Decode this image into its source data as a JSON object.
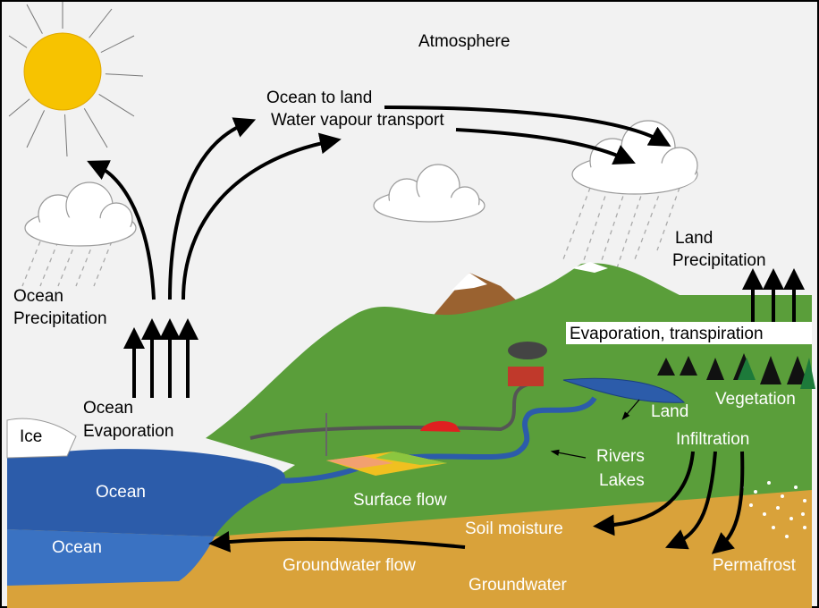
{
  "atmosphere": "Atmosphere",
  "vapour_transport": [
    "Ocean to land",
    "Water vapour transport"
  ],
  "land_precipitation": [
    "Land",
    "Precipitation"
  ],
  "ocean_precipitation": [
    "Ocean",
    "Precipitation"
  ],
  "evapotranspiration": "Evaporation, transpiration",
  "vegetation": "Vegetation",
  "ocean_evaporation": [
    "Ocean",
    "Evaporation"
  ],
  "ice": "Ice",
  "land_infiltration": [
    "Land",
    "Infiltration"
  ],
  "rivers_lakes": [
    "Rivers",
    "Lakes"
  ],
  "ocean_surface": "Ocean",
  "surface_flow": "Surface flow",
  "soil_moisture": "Soil moisture",
  "ocean_deep": "Ocean",
  "groundwater_flow": "Groundwater flow",
  "permafrost": "Permafrost",
  "groundwater": "Groundwater"
}
